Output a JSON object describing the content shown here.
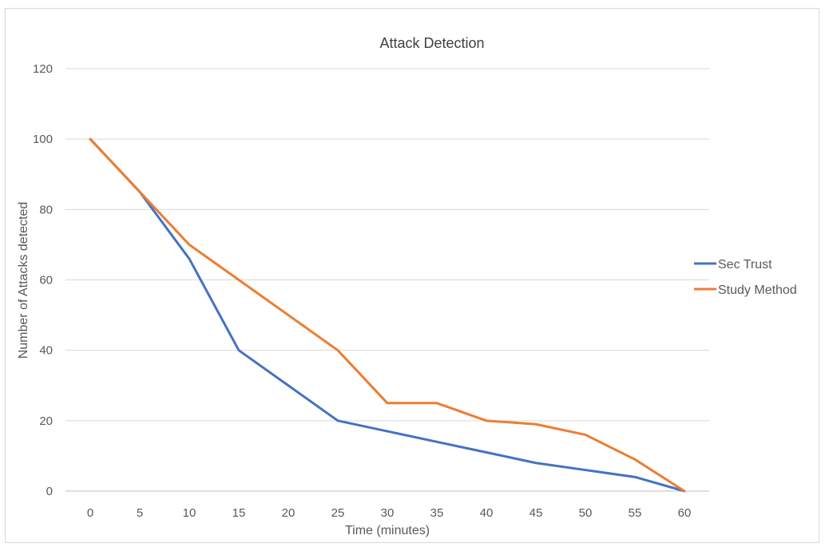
{
  "chart_data": {
    "type": "line",
    "title": "Attack Detection",
    "xlabel": "Time (minutes)",
    "ylabel": "Number of Attacks detected",
    "x": [
      0,
      5,
      10,
      15,
      20,
      25,
      30,
      35,
      40,
      45,
      50,
      55,
      60
    ],
    "ylim": [
      0,
      120
    ],
    "yticks": [
      0,
      20,
      40,
      60,
      80,
      100,
      120
    ],
    "grid": true,
    "legend_position": "right",
    "series": [
      {
        "name": "Sec Trust",
        "color": "#4472c4",
        "values": [
          100,
          85,
          66,
          40,
          30,
          20,
          17,
          14,
          11,
          8,
          6,
          4,
          0
        ]
      },
      {
        "name": "Study Method",
        "color": "#ed7d31",
        "values": [
          100,
          85,
          70,
          60,
          50,
          40,
          25,
          25,
          20,
          19,
          16,
          9,
          0
        ]
      }
    ]
  }
}
